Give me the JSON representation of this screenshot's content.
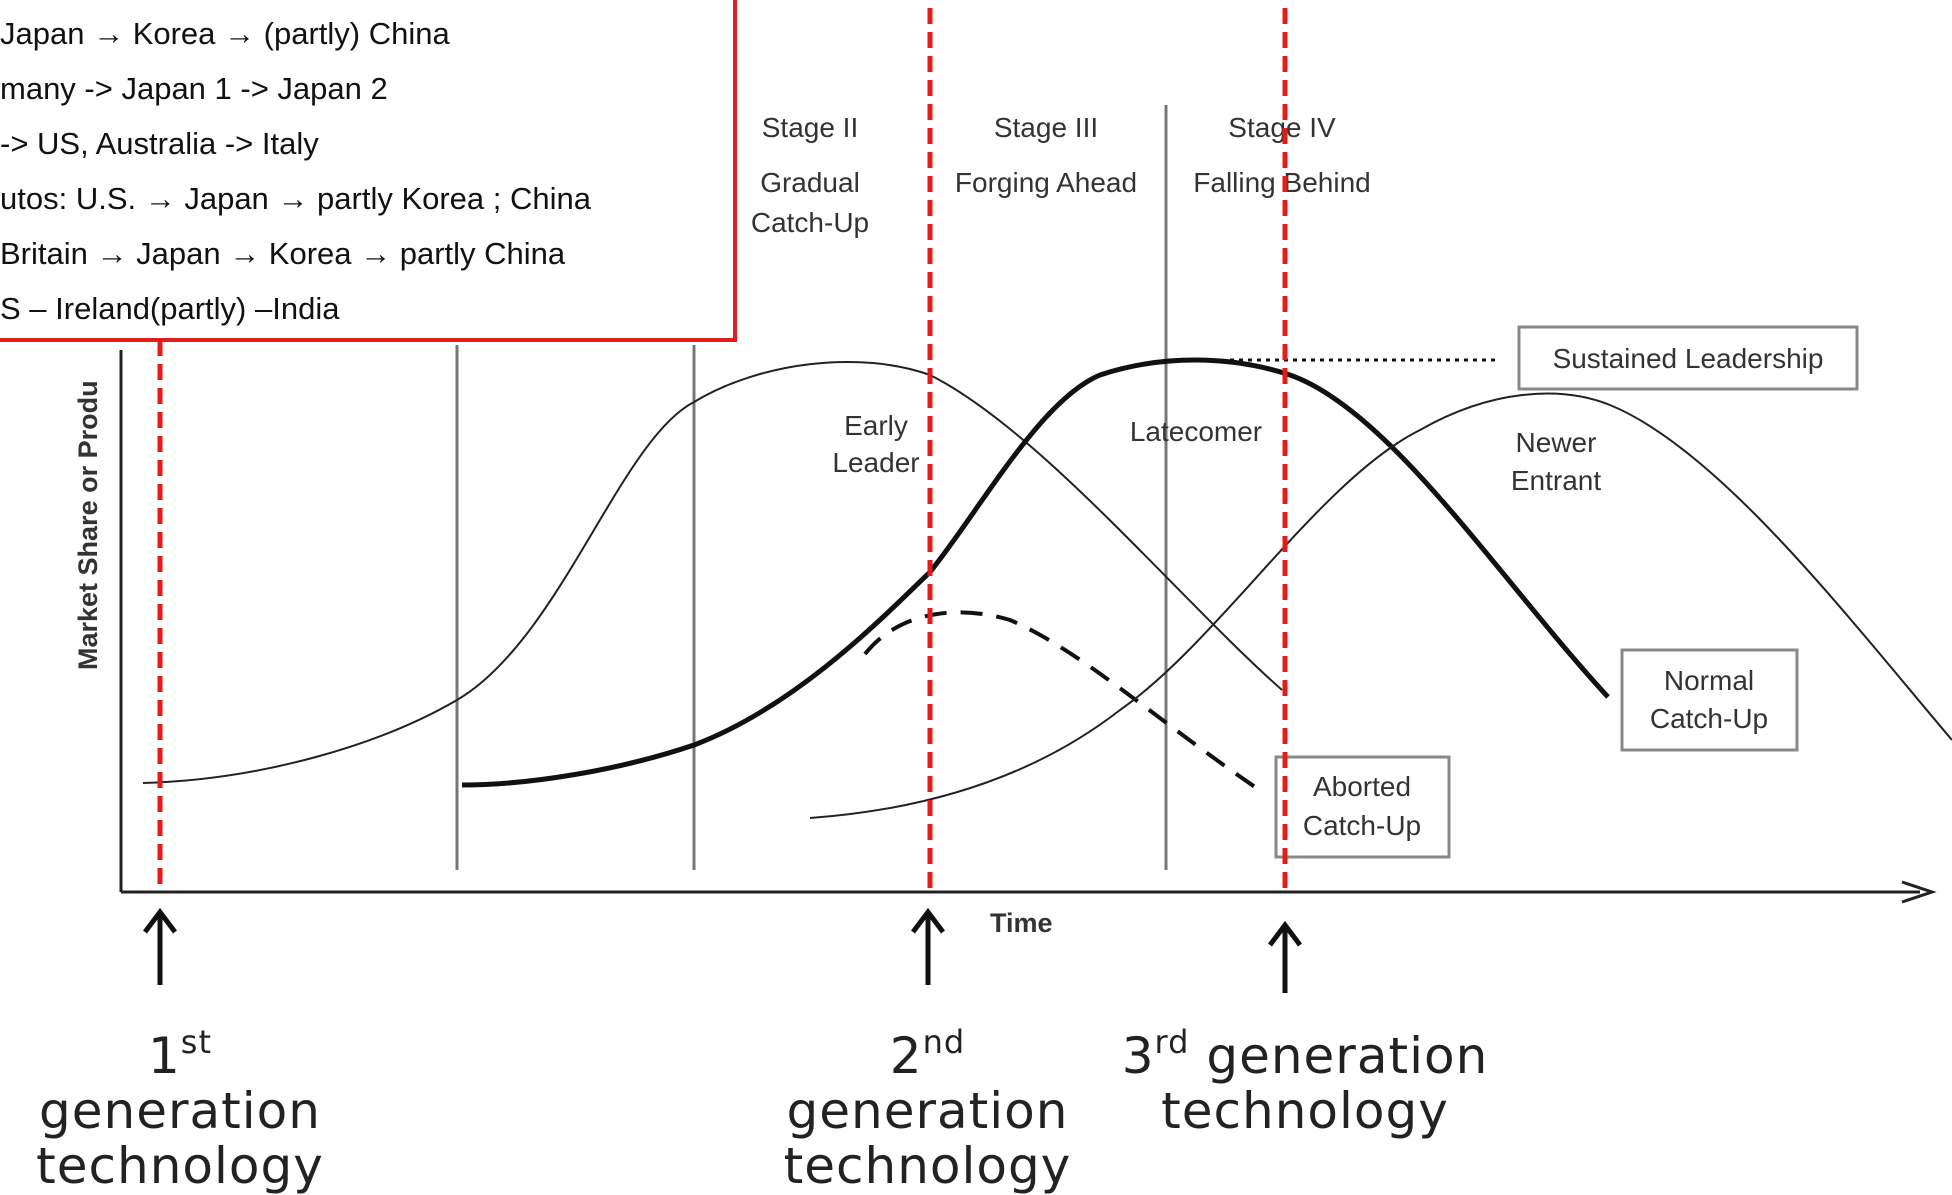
{
  "legend": {
    "lines": [
      "Japan → Korea → (partly) China",
      "many -> Japan 1 -> Japan 2",
      "-> US, Australia -> Italy",
      "utos: U.S. → Japan →  partly Korea ; China",
      "Britain → Japan → Korea → partly China",
      "S – Ireland(partly) –India"
    ]
  },
  "stages": [
    {
      "name": "Stage II",
      "desc_line1": "Gradual",
      "desc_line2": "Catch-Up"
    },
    {
      "name": "Stage III",
      "desc_line1": "Forging Ahead",
      "desc_line2": ""
    },
    {
      "name": "Stage IV",
      "desc_line1": "Falling Behind",
      "desc_line2": ""
    }
  ],
  "axes": {
    "x_label": "Time",
    "y_label": "Market Share or Produ"
  },
  "curve_labels": {
    "early_leader_1": "Early",
    "early_leader_2": "Leader",
    "latecomer": "Latecomer",
    "newer_entrant_1": "Newer",
    "newer_entrant_2": "Entrant"
  },
  "outcomes": {
    "sustained": "Sustained Leadership",
    "normal_1": "Normal",
    "normal_2": "Catch-Up",
    "aborted_1": "Aborted",
    "aborted_2": "Catch-Up"
  },
  "generations": [
    {
      "num": "1",
      "suffix": "st",
      "word1": "generation",
      "word2": "technology"
    },
    {
      "num": "2",
      "suffix": "nd",
      "word1": "generation",
      "word2": "technology"
    },
    {
      "num": "3",
      "suffix": "rd",
      "word1": "generation",
      "word2": "technology"
    }
  ],
  "colors": {
    "highlight_red": "#e31b1b",
    "line_dark": "#111111",
    "line_gray": "#777777"
  }
}
